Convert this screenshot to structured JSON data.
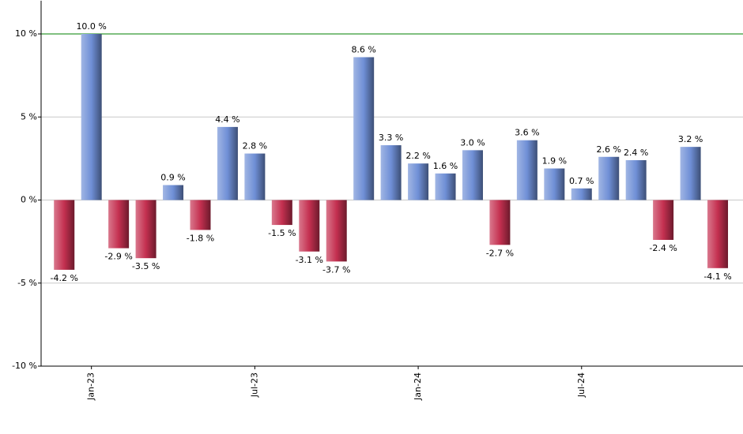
{
  "chart_data": {
    "type": "bar",
    "categories": [
      null,
      "Jan-23",
      null,
      null,
      null,
      null,
      null,
      "Jul-23",
      null,
      null,
      null,
      null,
      null,
      "Jan-24",
      null,
      null,
      null,
      null,
      null,
      "Jul-24",
      null,
      null,
      null,
      null,
      null
    ],
    "values": [
      -4.2,
      10.0,
      -2.9,
      -3.5,
      0.9,
      -1.8,
      4.4,
      2.8,
      -1.5,
      -3.1,
      -3.7,
      8.6,
      3.3,
      2.2,
      1.6,
      3.0,
      -2.7,
      3.6,
      1.9,
      0.7,
      2.6,
      2.4,
      -2.4,
      3.2,
      -4.1
    ],
    "value_labels": [
      "-4.2 %",
      "10.0 %",
      "-2.9 %",
      "-3.5 %",
      "0.9 %",
      "-1.8 %",
      "4.4 %",
      "2.8 %",
      "-1.5 %",
      "-3.1 %",
      "-3.7 %",
      "8.6 %",
      "3.3 %",
      "2.2 %",
      "1.6 %",
      "3.0 %",
      "-2.7 %",
      "3.6 %",
      "1.9 %",
      "0.7 %",
      "2.6 %",
      "2.4 %",
      "-2.4 %",
      "3.2 %",
      "-4.1 %"
    ],
    "positive_color": "#6f8fd6",
    "negative_color": "#c43050",
    "ylim": [
      -10,
      12
    ],
    "yticks": [
      {
        "value": -10,
        "label": "-10 %"
      },
      {
        "value": -5,
        "label": "-5 %"
      },
      {
        "value": 0,
        "label": "0 %"
      },
      {
        "value": 5,
        "label": "5 %"
      },
      {
        "value": 10,
        "label": "10 %"
      }
    ],
    "grid": true,
    "reference_line": {
      "value": 10,
      "color": "#008000"
    }
  }
}
